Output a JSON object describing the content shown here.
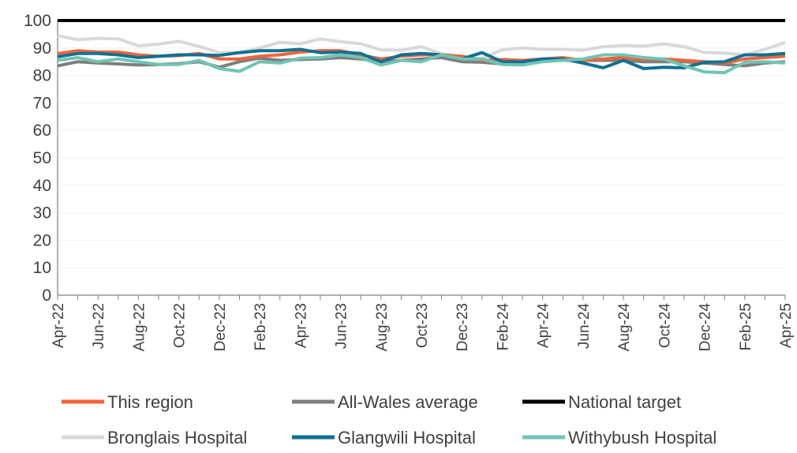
{
  "chart_data": {
    "type": "line",
    "title": "",
    "xlabel": "",
    "ylabel": "",
    "ylim": [
      0,
      100
    ],
    "yticks": [
      0,
      10,
      20,
      30,
      40,
      50,
      60,
      70,
      80,
      90,
      100
    ],
    "grid": true,
    "legend_position": "bottom",
    "x": [
      "Apr-22",
      "May-22",
      "Jun-22",
      "Jul-22",
      "Aug-22",
      "Sep-22",
      "Oct-22",
      "Nov-22",
      "Dec-22",
      "Jan-23",
      "Feb-23",
      "Mar-23",
      "Apr-23",
      "May-23",
      "Jun-23",
      "Jul-23",
      "Aug-23",
      "Sep-23",
      "Oct-23",
      "Nov-23",
      "Dec-23",
      "Jan-24",
      "Feb-24",
      "Mar-24",
      "Apr-24",
      "May-24",
      "Jun-24",
      "Jul-24",
      "Aug-24",
      "Sep-24",
      "Oct-24",
      "Nov-24",
      "Dec-24",
      "Jan-25",
      "Feb-25",
      "Mar-25",
      "Apr-25"
    ],
    "xtick_labels": [
      "Apr-22",
      "Jun-22",
      "Aug-22",
      "Oct-22",
      "Dec-22",
      "Feb-23",
      "Apr-23",
      "Jun-23",
      "Aug-23",
      "Oct-23",
      "Dec-23",
      "Feb-24",
      "Apr-24",
      "Jun-24",
      "Aug-24",
      "Oct-24",
      "Dec-24",
      "Feb-25",
      "Apr-25"
    ],
    "series": [
      {
        "name": "Bronglais Hospital",
        "color": "#d9d9d9",
        "values": [
          94.5,
          93,
          93.5,
          93.3,
          90.8,
          91.4,
          92.4,
          90.6,
          88.3,
          88.4,
          90,
          92.1,
          91.5,
          93.3,
          92.3,
          91.5,
          89.3,
          89.2,
          90.5,
          87.9,
          86.5,
          86.2,
          89.3,
          90,
          89.5,
          89.5,
          89.2,
          90.5,
          90.9,
          90.7,
          91.5,
          90.5,
          88.4,
          88.1,
          87.5,
          89.5,
          92
        ]
      },
      {
        "name": "All-Wales average",
        "color": "#7f7f7f",
        "values": [
          83.5,
          85,
          84.5,
          84.2,
          83.8,
          84,
          84.3,
          85,
          83,
          85,
          86.3,
          85.5,
          85.8,
          86,
          86.5,
          86,
          85,
          85.5,
          86,
          86.5,
          85,
          84.8,
          84.2,
          85,
          85.5,
          85.5,
          85.5,
          85.5,
          85.5,
          85,
          85,
          85,
          84.5,
          84,
          83.5,
          84.5,
          85
        ]
      },
      {
        "name": "This region",
        "color": "#f0643c",
        "values": [
          88,
          89,
          88.5,
          88.5,
          87.5,
          87,
          87.2,
          88,
          86,
          86,
          87,
          87.5,
          88.5,
          89,
          89,
          87.5,
          86,
          87,
          87.5,
          87.5,
          87,
          85.5,
          85.8,
          85.5,
          86,
          86.5,
          85.5,
          86,
          86.5,
          86,
          86,
          85.5,
          85,
          84.5,
          86,
          86.5,
          87
        ]
      },
      {
        "name": "Glangwili Hospital",
        "color": "#0f7191",
        "values": [
          86.8,
          88,
          88,
          87.5,
          86.5,
          87,
          87.5,
          87.5,
          87.3,
          88.3,
          89,
          89,
          89.5,
          88.3,
          88.5,
          88,
          85,
          87.5,
          88,
          87.5,
          86,
          88.3,
          85,
          85,
          86,
          86,
          84.5,
          82.8,
          85.5,
          82.5,
          83,
          82.8,
          84.8,
          85,
          87.5,
          87.5,
          88
        ]
      },
      {
        "name": "Withybush Hospital",
        "color": "#70c4b4",
        "values": [
          85.5,
          86.5,
          85,
          86,
          85,
          84,
          84,
          85.5,
          82.5,
          81.5,
          85,
          84.5,
          86.3,
          86.5,
          87.5,
          86.5,
          83.8,
          85.5,
          85,
          87.5,
          86,
          86,
          84,
          83.8,
          85,
          85.5,
          86,
          87.5,
          87.5,
          86.5,
          86,
          83.5,
          81.3,
          81,
          84.8,
          85,
          84.5
        ]
      },
      {
        "name": "National target",
        "color": "#000000",
        "values": [
          100,
          100,
          100,
          100,
          100,
          100,
          100,
          100,
          100,
          100,
          100,
          100,
          100,
          100,
          100,
          100,
          100,
          100,
          100,
          100,
          100,
          100,
          100,
          100,
          100,
          100,
          100,
          100,
          100,
          100,
          100,
          100,
          100,
          100,
          100,
          100,
          100
        ]
      }
    ],
    "legend": [
      {
        "name": "This region",
        "color": "#f0643c"
      },
      {
        "name": "All-Wales average",
        "color": "#7f7f7f"
      },
      {
        "name": "National target",
        "color": "#000000"
      },
      {
        "name": "Bronglais Hospital",
        "color": "#d9d9d9"
      },
      {
        "name": "Glangwili Hospital",
        "color": "#0f7191"
      },
      {
        "name": "Withybush Hospital",
        "color": "#70c4b4"
      }
    ]
  }
}
